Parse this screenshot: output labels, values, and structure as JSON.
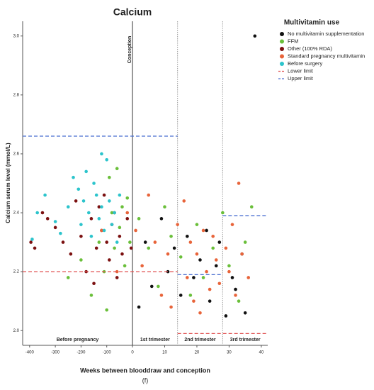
{
  "chart_data": {
    "type": "scatter",
    "title": "Calcium",
    "x_label": "Weeks between blooddraw and conception",
    "y_label": "Calcium serum level (mmol/L)",
    "caption": "(f)",
    "legend_title": "Multivitamin use",
    "legend_position": "right",
    "xlim": [
      -427,
      42
    ],
    "xticks": [
      -400,
      -300,
      -200,
      -100,
      0,
      10,
      20,
      30,
      40
    ],
    "ylim": [
      1.95,
      3.05
    ],
    "yticks": [
      {
        "value": 2.0,
        "label": "2.0"
      },
      {
        "value": 2.2,
        "label": "2.2"
      },
      {
        "value": 2.4,
        "label": "2.4"
      },
      {
        "value": 2.6,
        "label": "2.6"
      },
      {
        "value": 2.8,
        "label": "2.8"
      },
      {
        "value": 3.0,
        "label": "3.0"
      }
    ],
    "vlines": [
      {
        "x": 0,
        "label": "Conception",
        "style": "solid"
      },
      {
        "x": 14,
        "style": "dotted"
      },
      {
        "x": 28,
        "style": "dotted"
      }
    ],
    "regions": [
      "Before pregnancy",
      "1st trimester",
      "2nd trimester",
      "3rd trimester"
    ],
    "series": [
      {
        "name": "No multivitamin supplementation",
        "color": "#111111",
        "x": [
          2,
          4,
          6,
          9,
          11,
          13,
          15,
          17,
          19,
          21,
          23,
          24,
          26,
          27,
          29,
          31,
          32,
          34,
          35,
          38
        ],
        "values": [
          2.08,
          2.3,
          2.15,
          2.38,
          2.2,
          2.28,
          2.12,
          2.32,
          2.18,
          2.24,
          2.34,
          2.1,
          2.22,
          2.3,
          2.05,
          2.18,
          2.14,
          2.26,
          2.06,
          3.0
        ]
      },
      {
        "name": "FFM",
        "color": "#6abf3a",
        "x": [
          -250,
          -200,
          -160,
          -130,
          -110,
          -100,
          -90,
          -80,
          -70,
          -60,
          -50,
          -40,
          -30,
          -20,
          -10,
          2,
          5,
          8,
          10,
          12,
          15,
          18,
          20,
          22,
          25,
          28,
          30,
          33,
          35,
          37
        ],
        "values": [
          2.18,
          2.24,
          2.12,
          2.3,
          2.2,
          2.07,
          2.52,
          2.4,
          2.28,
          2.55,
          2.35,
          2.42,
          2.22,
          2.45,
          2.3,
          2.38,
          2.28,
          2.15,
          2.42,
          2.32,
          2.25,
          2.12,
          2.36,
          2.18,
          2.28,
          2.4,
          2.22,
          2.1,
          2.3,
          2.42
        ]
      },
      {
        "name": "Other (100% RDA)",
        "color": "#7b1010",
        "x": [
          -395,
          -380,
          -350,
          -330,
          -300,
          -270,
          -240,
          -220,
          -200,
          -180,
          -160,
          -150,
          -140,
          -130,
          -120,
          -110,
          -100,
          -90,
          -80,
          -70,
          -60,
          -50,
          -40,
          -20,
          -5
        ],
        "values": [
          2.3,
          2.28,
          2.4,
          2.38,
          2.35,
          2.3,
          2.26,
          2.44,
          2.32,
          2.2,
          2.38,
          2.16,
          2.28,
          2.42,
          2.34,
          2.46,
          2.3,
          2.24,
          2.36,
          2.4,
          2.18,
          2.32,
          2.26,
          2.38,
          2.28
        ]
      },
      {
        "name": "Standard pregnancy multivitamin",
        "color": "#e8643a",
        "x": [
          -120,
          -60,
          -20,
          1,
          3,
          5,
          7,
          9,
          11,
          12,
          14,
          16,
          17,
          18,
          19,
          20,
          21,
          22,
          23,
          24,
          25,
          26,
          27,
          29,
          30,
          31,
          32,
          33,
          34,
          36
        ],
        "values": [
          2.34,
          2.2,
          2.4,
          2.34,
          2.22,
          2.46,
          2.3,
          2.12,
          2.26,
          2.08,
          2.36,
          2.44,
          2.18,
          2.3,
          2.1,
          2.26,
          2.06,
          2.34,
          2.2,
          2.14,
          2.32,
          2.24,
          2.16,
          2.28,
          2.2,
          2.36,
          2.12,
          2.5,
          2.26,
          2.18
        ]
      },
      {
        "name": "Before surgery",
        "color": "#2cc4cc",
        "x": [
          -390,
          -370,
          -340,
          -300,
          -280,
          -250,
          -230,
          -210,
          -200,
          -190,
          -180,
          -170,
          -160,
          -150,
          -140,
          -130,
          -120,
          -110,
          -100,
          -90,
          -80,
          -70,
          -60,
          -50,
          -120
        ],
        "values": [
          2.31,
          2.4,
          2.46,
          2.37,
          2.33,
          2.42,
          2.52,
          2.48,
          2.36,
          2.44,
          2.54,
          2.4,
          2.32,
          2.5,
          2.46,
          2.38,
          2.42,
          2.34,
          2.58,
          2.44,
          2.36,
          2.4,
          2.3,
          2.46,
          2.6
        ]
      }
    ],
    "reference_lines": [
      {
        "name": "Lower limit",
        "color": "#e05050",
        "segments": [
          {
            "x": [
              -427,
              14
            ],
            "y": 2.2
          },
          {
            "x": [
              14,
              42
            ],
            "y": 1.99
          }
        ]
      },
      {
        "name": "Upper limit",
        "color": "#4a6fd0",
        "segments": [
          {
            "x": [
              -427,
              14
            ],
            "y": 2.66
          },
          {
            "x": [
              14,
              28
            ],
            "y": 2.19
          },
          {
            "x": [
              28,
              42
            ],
            "y": 2.39
          }
        ]
      }
    ]
  }
}
